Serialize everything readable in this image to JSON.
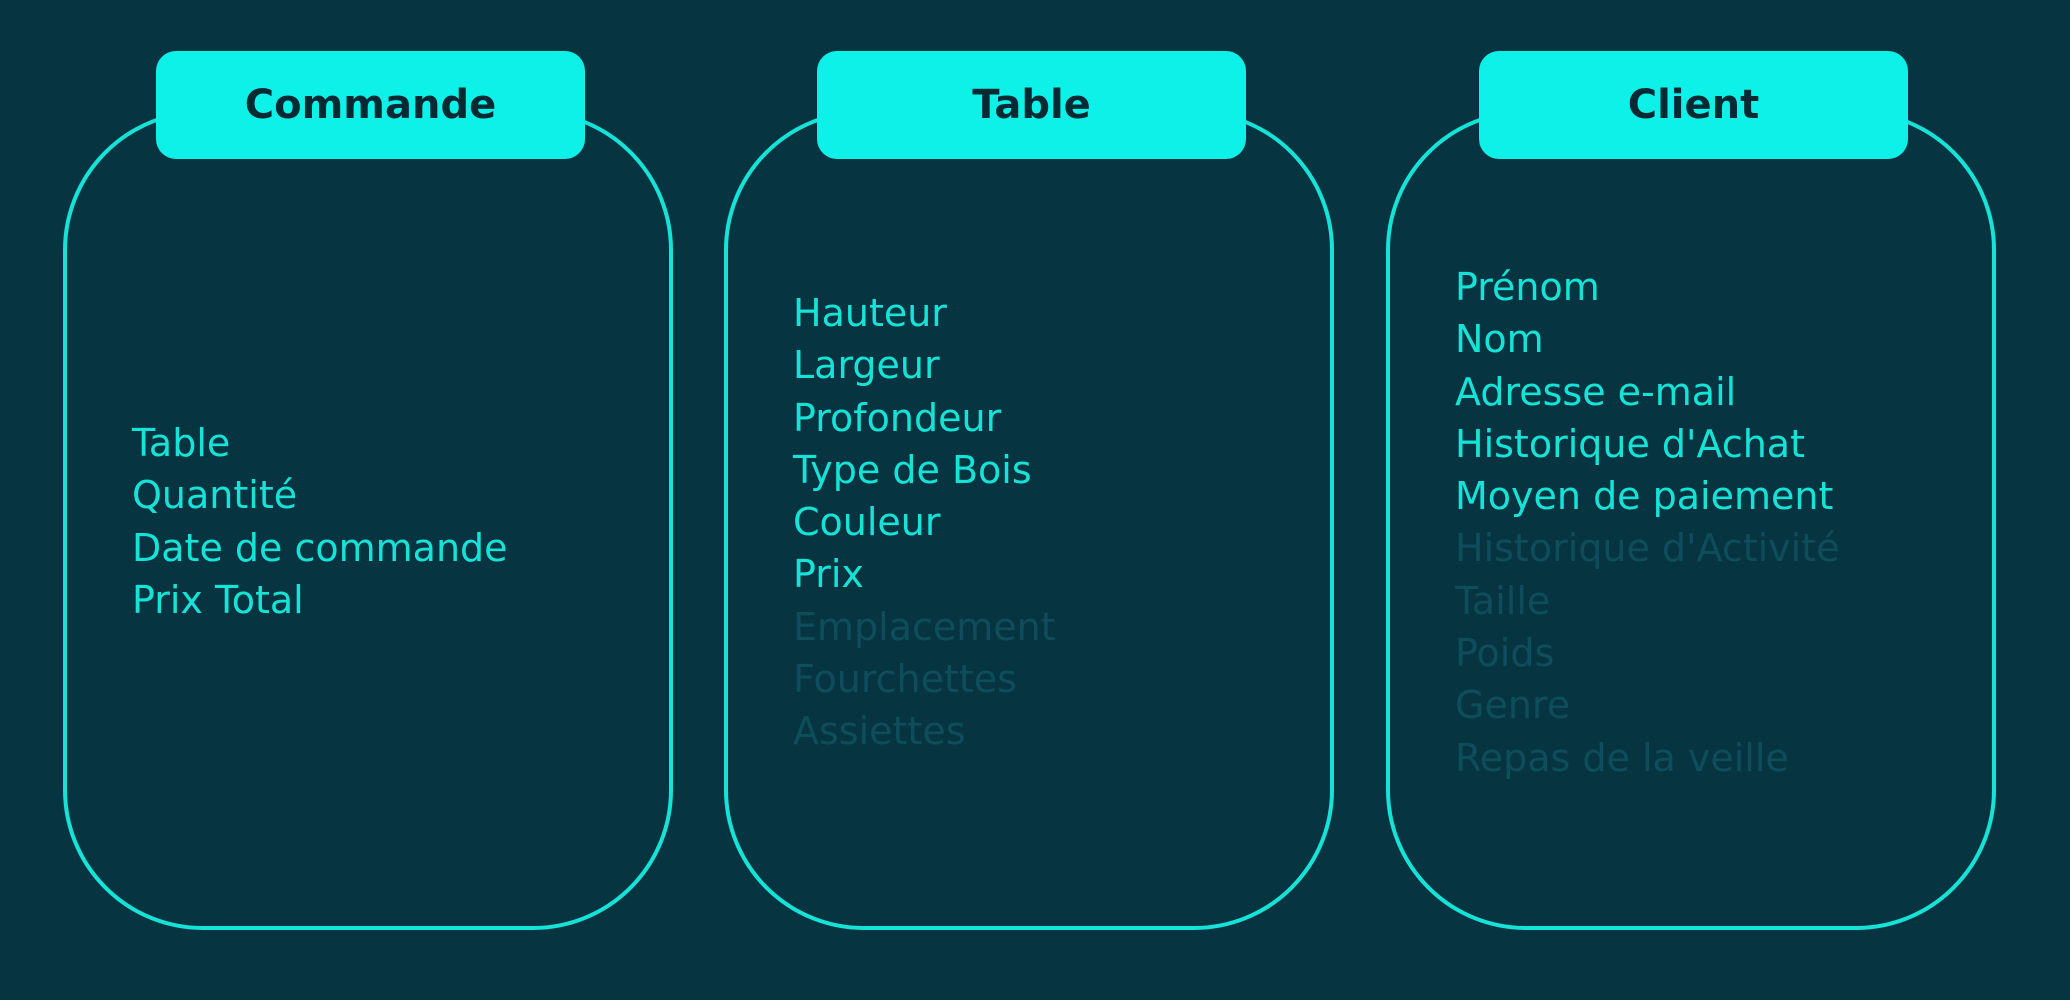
{
  "cards": [
    {
      "title": "Commande",
      "fields": [
        {
          "label": "Table",
          "muted": false
        },
        {
          "label": "Quantité",
          "muted": false
        },
        {
          "label": "Date de commande",
          "muted": false
        },
        {
          "label": "Prix Total",
          "muted": false
        }
      ]
    },
    {
      "title": "Table",
      "fields": [
        {
          "label": "Hauteur",
          "muted": false
        },
        {
          "label": "Largeur",
          "muted": false
        },
        {
          "label": "Profondeur",
          "muted": false
        },
        {
          "label": "Type de Bois",
          "muted": false
        },
        {
          "label": "Couleur",
          "muted": false
        },
        {
          "label": "Prix",
          "muted": false
        },
        {
          "label": "Emplacement",
          "muted": true
        },
        {
          "label": "Fourchettes",
          "muted": true
        },
        {
          "label": "Assiettes",
          "muted": true
        }
      ]
    },
    {
      "title": "Client",
      "fields": [
        {
          "label": "Prénom",
          "muted": false
        },
        {
          "label": "Nom",
          "muted": false
        },
        {
          "label": "Adresse e-mail",
          "muted": false
        },
        {
          "label": "Historique d'Achat",
          "muted": false
        },
        {
          "label": "Moyen de paiement",
          "muted": false
        },
        {
          "label": "Historique d'Activité",
          "muted": true
        },
        {
          "label": "Taille",
          "muted": true
        },
        {
          "label": "Poids",
          "muted": true
        },
        {
          "label": "Genre",
          "muted": true
        },
        {
          "label": "Repas de la veille",
          "muted": true
        }
      ]
    }
  ],
  "colors": {
    "background": "#063541",
    "accent": "#16e3d8",
    "header_fill": "#0ef1e8",
    "header_text": "#062a33",
    "muted_text": "#0e4d5b"
  }
}
